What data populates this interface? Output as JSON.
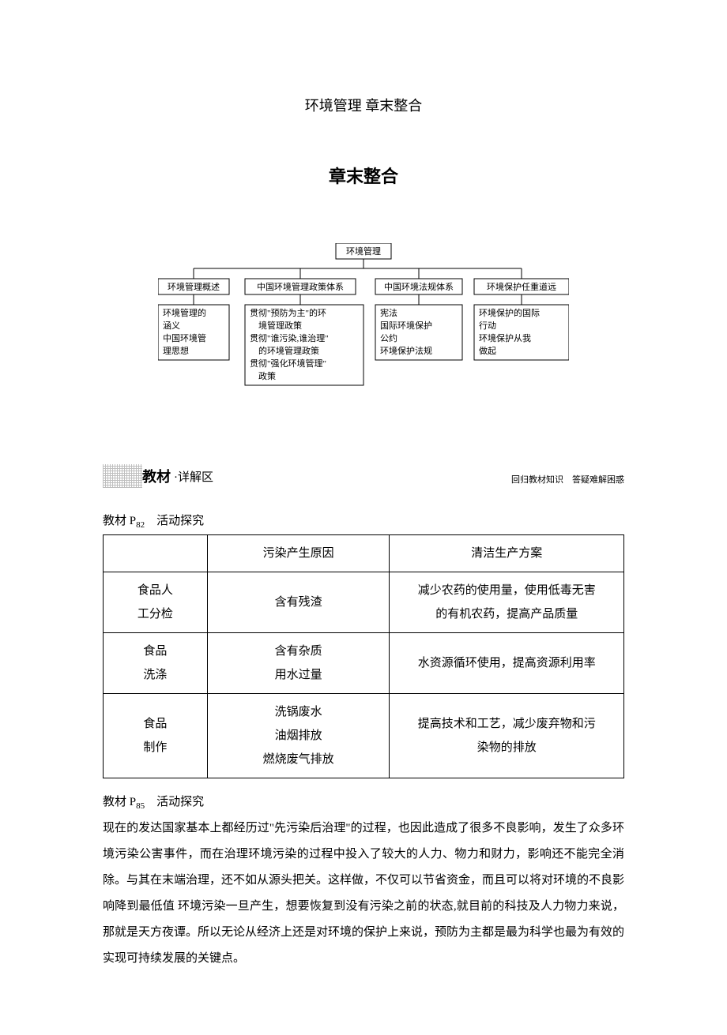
{
  "title": "环境管理 章末整合",
  "sub_title": "章末整合",
  "diagram": {
    "root": "环境管理",
    "columns": [
      {
        "header": "环境管理概述",
        "lines": [
          "环境管理的",
          "涵义",
          "中国环境管",
          "理思想"
        ]
      },
      {
        "header": "中国环境管理政策体系",
        "lines": [
          "贯彻\"预防为主\"的环",
          "　境管理政策",
          "贯彻\"谁污染,谁治理\"",
          "　的环境管理政策",
          "贯彻\"强化环境管理\"",
          "　政策"
        ]
      },
      {
        "header": "中国环境法规体系",
        "lines": [
          "宪法",
          "国际环境保护",
          "公约",
          "环境保护法规"
        ]
      },
      {
        "header": "环境保护任重道远",
        "lines": [
          "环境保护的国际",
          "行动",
          "环境保护从我",
          "做起"
        ]
      }
    ],
    "colors": {
      "stroke": "#000000",
      "fill": "#ffffff"
    },
    "font_size": 11
  },
  "section": {
    "name": "教材",
    "suffix": "·详解区",
    "note": "回归教材知识　答疑难解困惑"
  },
  "ref1": {
    "prefix": "教材 P",
    "sub": "82",
    "suffix": "　活动探究"
  },
  "table": {
    "headers": [
      "",
      "污染产生原因",
      "清洁生产方案"
    ],
    "col_widths": [
      "20%",
      "35%",
      "45%"
    ],
    "rows": [
      {
        "c1": "食品人<br>工分检",
        "c2": "含有残渣",
        "c3": "减少农药的使用量，使用低毒无害<br>的有机农药，提高产品质量"
      },
      {
        "c1": "食品<br>洗涤",
        "c2": "含有杂质<br>用水过量",
        "c3": "水资源循环使用，提高资源利用率"
      },
      {
        "c1": "食品<br>制作",
        "c2": "洗锅废水<br>油烟排放<br>燃烧废气排放",
        "c3": "提高技术和工艺，减少废弃物和污<br>染物的排放"
      }
    ]
  },
  "ref2": {
    "prefix": "教材 P",
    "sub": "85",
    "suffix": "　活动探究"
  },
  "paragraph": "现在的发达国家基本上都经历过\"先污染后治理\"的过程，也因此造成了很多不良影响，发生了众多环境污染公害事件，而在治理环境污染的过程中投入了较大的人力、物力和财力，影响还不能完全消除。与其在末端治理，还不如从源头把关。这样做，不仅可以节省资金，而且可以将对环境的不良影响降到最低值 环境污染一旦产生，想要恢复到没有污染之前的状态,就目前的科技及人力物力来说，那就是天方夜谭。所以无论从经济上还是对环境的保护上来说，预防为主都是最为科学也最为有效的实现可持续发展的关键点。"
}
